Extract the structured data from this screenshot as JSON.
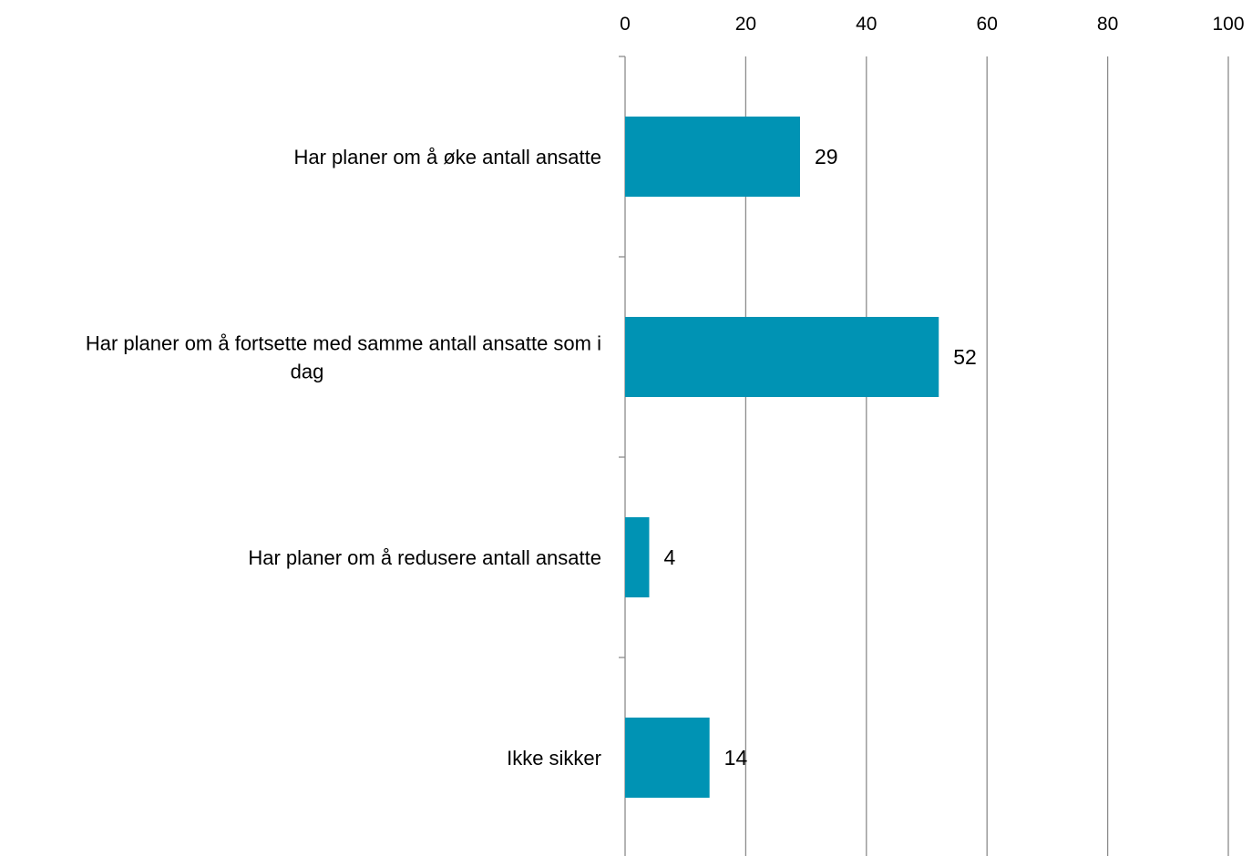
{
  "chart_data": {
    "type": "bar",
    "orientation": "horizontal",
    "categories": [
      "Har planer om å øke antall ansatte",
      "Har planer om å fortsette med samme antall ansatte som i dag",
      "Har planer om å redusere antall ansatte",
      "Ikke sikker"
    ],
    "category_lines": [
      [
        "Har planer om å øke antall ansatte"
      ],
      [
        "Har planer om å fortsette med samme antall ansatte som i",
        "dag"
      ],
      [
        "Har planer om å redusere antall ansatte"
      ],
      [
        "Ikke sikker"
      ]
    ],
    "values": [
      29,
      52,
      4,
      14
    ],
    "data_labels": [
      "29",
      "52",
      "4",
      "14"
    ],
    "xlim": [
      0,
      100
    ],
    "x_ticks": [
      0,
      20,
      40,
      60,
      80,
      100
    ],
    "x_tick_labels": [
      "0",
      "20",
      "40",
      "60",
      "80",
      "100"
    ],
    "x_axis_position": "top",
    "grid": true,
    "bar_color": "#0093b4",
    "grid_color": "#8c8c8c",
    "title": "",
    "xlabel": "",
    "ylabel": ""
  }
}
